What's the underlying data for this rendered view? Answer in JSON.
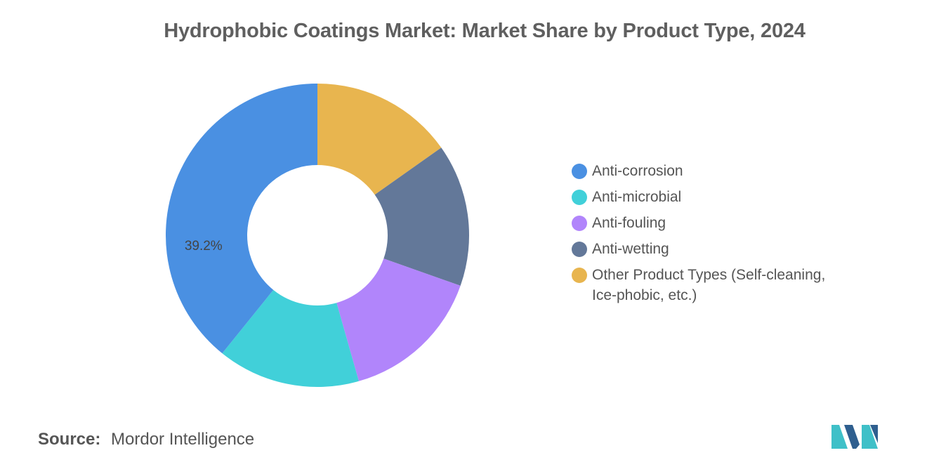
{
  "title": "Hydrophobic Coatings Market: Market Share by Product Type, 2024",
  "source": {
    "label": "Source:",
    "name": "Mordor Intelligence"
  },
  "colors": {
    "title": "#5f5f5f",
    "text": "#555555",
    "logo_dark": "#2f5f8f",
    "logo_light": "#3fc0c8"
  },
  "chart_data": {
    "type": "pie",
    "style": "donut",
    "title": "Hydrophobic Coatings Market: Market Share by Product Type, 2024",
    "legend_position": "right",
    "categories": [
      "Anti-corrosion",
      "Anti-microbial",
      "Anti-fouling",
      "Anti-wetting",
      "Other Product Types (Self-cleaning, Ice-phobic, etc.)"
    ],
    "values": [
      39.2,
      15.2,
      15.2,
      15.2,
      15.2
    ],
    "colors": [
      "#4a90e2",
      "#41d0d9",
      "#b185fb",
      "#637899",
      "#e8b54f"
    ],
    "data_labels": [
      {
        "category": "Anti-corrosion",
        "text": "39.2%"
      }
    ]
  },
  "legend": [
    {
      "label": "Anti-corrosion",
      "color": "#4a90e2"
    },
    {
      "label": "Anti-microbial",
      "color": "#41d0d9"
    },
    {
      "label": "Anti-fouling",
      "color": "#b185fb"
    },
    {
      "label": "Anti-wetting",
      "color": "#637899"
    },
    {
      "label": "Other Product Types (Self-cleaning, Ice-phobic, etc.)",
      "color": "#e8b54f"
    }
  ]
}
